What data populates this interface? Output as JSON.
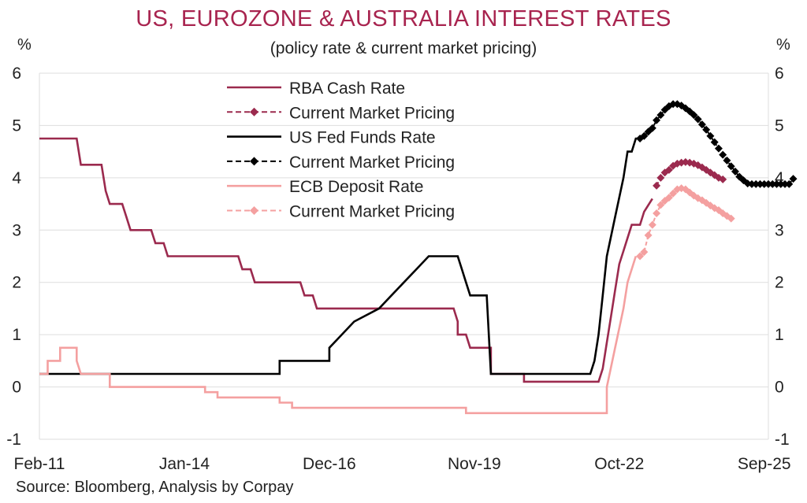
{
  "header": {
    "title": "US, EUROZONE & AUSTRALIA INTEREST RATES",
    "subtitle": "(policy rate & current market pricing)",
    "unit_left": "%",
    "unit_right": "%"
  },
  "footer": {
    "source": "Source: Bloomberg, Analysis by Corpay"
  },
  "chart_data": {
    "type": "line",
    "title": "US, EUROZONE & AUSTRALIA INTEREST RATES",
    "subtitle": "(policy rate & current market pricing)",
    "xlabel": "",
    "ylabel": "%",
    "ylim": [
      -1,
      6
    ],
    "yticks": [
      -1,
      0,
      1,
      2,
      3,
      4,
      5,
      6
    ],
    "xlim": [
      "2011-02",
      "2025-10"
    ],
    "xticks": [
      {
        "date": "2011-02",
        "label": "Feb-11"
      },
      {
        "date": "2014-01",
        "label": "Jan-14"
      },
      {
        "date": "2016-12",
        "label": "Dec-16"
      },
      {
        "date": "2019-11",
        "label": "Nov-19"
      },
      {
        "date": "2022-10",
        "label": "Oct-22"
      },
      {
        "date": "2025-09",
        "label": "Sep-25"
      }
    ],
    "grid": "horizontal",
    "legend_position": "top-left",
    "series": [
      {
        "name": "RBA Cash Rate",
        "style": "solid",
        "color": "#9b2a4e",
        "points": [
          [
            "2011-02",
            4.75
          ],
          [
            "2011-11",
            4.75
          ],
          [
            "2011-12",
            4.25
          ],
          [
            "2012-05",
            4.25
          ],
          [
            "2012-06",
            3.75
          ],
          [
            "2012-07",
            3.5
          ],
          [
            "2012-10",
            3.5
          ],
          [
            "2012-11",
            3.25
          ],
          [
            "2012-12",
            3.0
          ],
          [
            "2013-05",
            3.0
          ],
          [
            "2013-06",
            2.75
          ],
          [
            "2013-08",
            2.75
          ],
          [
            "2013-09",
            2.5
          ],
          [
            "2015-02",
            2.5
          ],
          [
            "2015-03",
            2.25
          ],
          [
            "2015-05",
            2.25
          ],
          [
            "2015-06",
            2.0
          ],
          [
            "2016-05",
            2.0
          ],
          [
            "2016-06",
            1.75
          ],
          [
            "2016-08",
            1.75
          ],
          [
            "2016-09",
            1.5
          ],
          [
            "2019-06",
            1.5
          ],
          [
            "2019-07",
            1.25
          ],
          [
            "2019-07",
            1.0
          ],
          [
            "2019-09",
            1.0
          ],
          [
            "2019-10",
            0.75
          ],
          [
            "2020-03",
            0.75
          ],
          [
            "2020-03",
            0.25
          ],
          [
            "2020-11",
            0.25
          ],
          [
            "2020-11",
            0.1
          ],
          [
            "2022-05",
            0.1
          ],
          [
            "2022-06",
            0.35
          ],
          [
            "2022-07",
            0.85
          ],
          [
            "2022-08",
            1.35
          ],
          [
            "2022-09",
            1.85
          ],
          [
            "2022-10",
            2.35
          ],
          [
            "2022-11",
            2.6
          ],
          [
            "2022-12",
            2.85
          ],
          [
            "2023-01",
            3.1
          ],
          [
            "2023-03",
            3.1
          ],
          [
            "2023-04",
            3.35
          ],
          [
            "2023-06",
            3.6
          ]
        ]
      },
      {
        "name": "Current Market Pricing",
        "style": "dashed-diamond",
        "color": "#9b2a4e",
        "points": [
          [
            "2023-07",
            3.85
          ],
          [
            "2023-08",
            4.0
          ],
          [
            "2023-09",
            4.1
          ],
          [
            "2023-10",
            4.15
          ],
          [
            "2023-11",
            4.23
          ],
          [
            "2023-12",
            4.27
          ],
          [
            "2024-01",
            4.29
          ],
          [
            "2024-02",
            4.3
          ],
          [
            "2024-03",
            4.29
          ],
          [
            "2024-04",
            4.27
          ],
          [
            "2024-05",
            4.24
          ],
          [
            "2024-06",
            4.2
          ],
          [
            "2024-07",
            4.15
          ],
          [
            "2024-08",
            4.1
          ],
          [
            "2024-09",
            4.05
          ],
          [
            "2024-10",
            4.0
          ],
          [
            "2024-11",
            3.97
          ]
        ]
      },
      {
        "name": "US Fed Funds Rate",
        "style": "solid",
        "color": "#000000",
        "points": [
          [
            "2011-02",
            0.25
          ],
          [
            "2015-12",
            0.25
          ],
          [
            "2015-12",
            0.5
          ],
          [
            "2016-12",
            0.5
          ],
          [
            "2016-12",
            0.75
          ],
          [
            "2017-03",
            1.0
          ],
          [
            "2017-06",
            1.25
          ],
          [
            "2017-12",
            1.5
          ],
          [
            "2018-03",
            1.75
          ],
          [
            "2018-06",
            2.0
          ],
          [
            "2018-09",
            2.25
          ],
          [
            "2018-12",
            2.5
          ],
          [
            "2019-07",
            2.5
          ],
          [
            "2019-08",
            2.25
          ],
          [
            "2019-09",
            2.0
          ],
          [
            "2019-10",
            1.75
          ],
          [
            "2020-02",
            1.75
          ],
          [
            "2020-03",
            0.25
          ],
          [
            "2022-03",
            0.25
          ],
          [
            "2022-04",
            0.5
          ],
          [
            "2022-05",
            1.0
          ],
          [
            "2022-06",
            1.75
          ],
          [
            "2022-07",
            2.5
          ],
          [
            "2022-09",
            3.25
          ],
          [
            "2022-11",
            4.0
          ],
          [
            "2022-12",
            4.5
          ],
          [
            "2023-01",
            4.5
          ],
          [
            "2023-02",
            4.75
          ],
          [
            "2023-03",
            4.75
          ]
        ]
      },
      {
        "name": "Current Market Pricing",
        "style": "dashed-diamond",
        "color": "#000000",
        "points": [
          [
            "2023-03",
            4.75
          ],
          [
            "2023-04",
            4.8
          ],
          [
            "2023-05",
            4.88
          ],
          [
            "2023-06",
            4.95
          ],
          [
            "2023-07",
            5.1
          ],
          [
            "2023-08",
            5.2
          ],
          [
            "2023-09",
            5.3
          ],
          [
            "2023-10",
            5.37
          ],
          [
            "2023-11",
            5.41
          ],
          [
            "2023-12",
            5.41
          ],
          [
            "2024-01",
            5.38
          ],
          [
            "2024-02",
            5.33
          ],
          [
            "2024-03",
            5.27
          ],
          [
            "2024-04",
            5.2
          ],
          [
            "2024-05",
            5.12
          ],
          [
            "2024-06",
            5.02
          ],
          [
            "2024-07",
            4.92
          ],
          [
            "2024-08",
            4.8
          ],
          [
            "2024-09",
            4.68
          ],
          [
            "2024-10",
            4.56
          ],
          [
            "2024-11",
            4.44
          ],
          [
            "2024-12",
            4.33
          ],
          [
            "2025-01",
            4.22
          ],
          [
            "2025-02",
            4.12
          ],
          [
            "2025-03",
            4.02
          ],
          [
            "2025-04",
            3.95
          ],
          [
            "2025-05",
            3.89
          ],
          [
            "2025-06",
            3.88
          ],
          [
            "2025-07",
            3.88
          ],
          [
            "2025-08",
            3.88
          ],
          [
            "2025-09",
            3.88
          ],
          [
            "2025-10",
            3.88
          ],
          [
            "2025-11",
            3.88
          ],
          [
            "2025-12",
            3.88
          ],
          [
            "2026-01",
            3.88
          ],
          [
            "2026-02",
            3.88
          ],
          [
            "2026-03",
            3.88
          ],
          [
            "2026-04",
            3.98
          ]
        ]
      },
      {
        "name": "ECB Deposit Rate",
        "style": "solid",
        "color": "#f4a0a0",
        "points": [
          [
            "2011-02",
            0.25
          ],
          [
            "2011-04",
            0.25
          ],
          [
            "2011-04",
            0.5
          ],
          [
            "2011-07",
            0.5
          ],
          [
            "2011-07",
            0.75
          ],
          [
            "2011-11",
            0.75
          ],
          [
            "2011-11",
            0.5
          ],
          [
            "2011-12",
            0.25
          ],
          [
            "2012-07",
            0.25
          ],
          [
            "2012-07",
            0.0
          ],
          [
            "2014-06",
            0.0
          ],
          [
            "2014-06",
            -0.1
          ],
          [
            "2014-09",
            -0.1
          ],
          [
            "2014-09",
            -0.2
          ],
          [
            "2015-12",
            -0.2
          ],
          [
            "2015-12",
            -0.3
          ],
          [
            "2016-03",
            -0.3
          ],
          [
            "2016-03",
            -0.4
          ],
          [
            "2019-09",
            -0.4
          ],
          [
            "2019-09",
            -0.5
          ],
          [
            "2022-07",
            -0.5
          ],
          [
            "2022-07",
            0.0
          ],
          [
            "2022-09",
            0.75
          ],
          [
            "2022-11",
            1.5
          ],
          [
            "2022-12",
            2.0
          ],
          [
            "2023-02",
            2.5
          ]
        ]
      },
      {
        "name": "Current Market Pricing",
        "style": "dashed-diamond",
        "color": "#f4a0a0",
        "points": [
          [
            "2023-03",
            2.5
          ],
          [
            "2023-04",
            2.58
          ],
          [
            "2023-05",
            2.9
          ],
          [
            "2023-06",
            3.1
          ],
          [
            "2023-07",
            3.32
          ],
          [
            "2023-08",
            3.48
          ],
          [
            "2023-09",
            3.56
          ],
          [
            "2023-10",
            3.62
          ],
          [
            "2023-11",
            3.7
          ],
          [
            "2023-12",
            3.78
          ],
          [
            "2024-01",
            3.8
          ],
          [
            "2024-02",
            3.78
          ],
          [
            "2024-03",
            3.72
          ],
          [
            "2024-04",
            3.66
          ],
          [
            "2024-05",
            3.61
          ],
          [
            "2024-06",
            3.57
          ],
          [
            "2024-07",
            3.52
          ],
          [
            "2024-08",
            3.47
          ],
          [
            "2024-09",
            3.42
          ],
          [
            "2024-10",
            3.38
          ],
          [
            "2024-11",
            3.32
          ],
          [
            "2024-12",
            3.27
          ],
          [
            "2025-01",
            3.22
          ]
        ]
      }
    ]
  }
}
